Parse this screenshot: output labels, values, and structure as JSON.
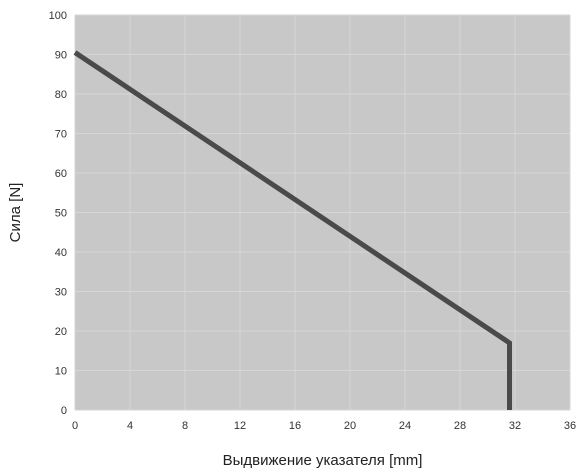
{
  "chart_data": {
    "type": "line",
    "title": "",
    "xlabel": "Выдвижение указателя [mm]",
    "ylabel": "Сила [N]",
    "xlim": [
      0,
      36
    ],
    "ylim": [
      0,
      100
    ],
    "xticks": [
      0,
      4,
      8,
      12,
      16,
      20,
      24,
      28,
      32,
      36
    ],
    "yticks": [
      0,
      10,
      20,
      30,
      40,
      50,
      60,
      70,
      80,
      90,
      100
    ],
    "grid": true,
    "legend": "none",
    "colors": {
      "plot_background": "#c8c8c8",
      "grid": "#d6d6d6",
      "line": "#4a4a4a"
    },
    "series": [
      {
        "x": [
          0,
          31.6,
          31.6
        ],
        "y": [
          90.5,
          17,
          0
        ]
      }
    ]
  }
}
